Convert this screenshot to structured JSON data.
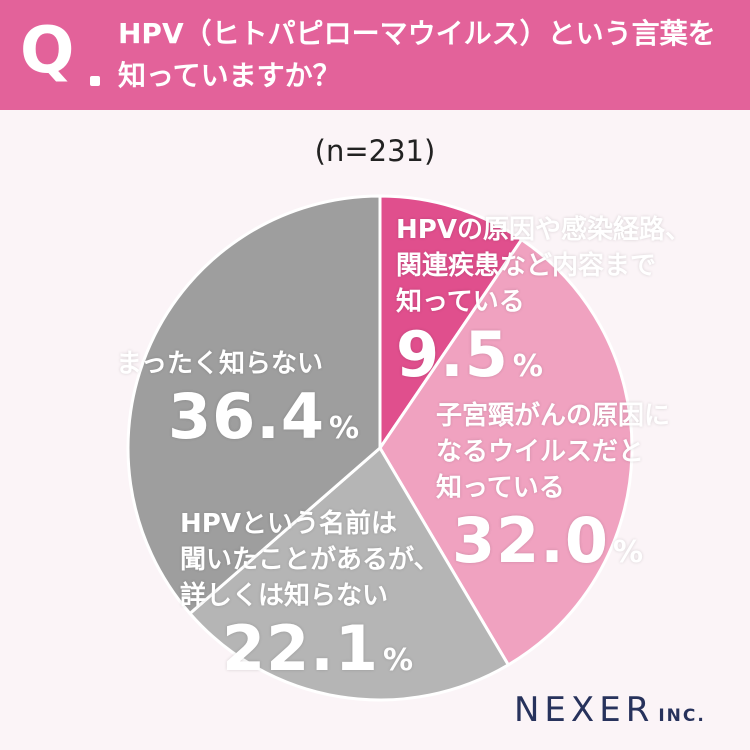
{
  "header": {
    "q_mark": "Q",
    "question_lines": [
      "HPV（ヒトパピローマウイルス）という言葉を",
      "知っていますか？"
    ]
  },
  "sample_size": "(n=231)",
  "colors": {
    "header_bg": "#e3629a",
    "slice_know_details": "#e04f8d",
    "slice_know_virus": "#f0a2c0",
    "slice_heard_only": "#b5b5b5",
    "slice_dont_know": "#9e9e9e",
    "background": "#fbf4f7"
  },
  "chart_data": {
    "type": "pie",
    "start_angle": "12 o'clock, clockwise",
    "slices": [
      {
        "label_lines": [
          "HPVの原因や感染経路、",
          "関連疾患など内容まで",
          "知っている"
        ],
        "value": 9.5,
        "value_text": "9.5",
        "unit": "%",
        "color": "#e04f8d"
      },
      {
        "label_lines": [
          "子宮頸がんの原因に",
          "なるウイルスだと",
          "知っている"
        ],
        "value": 32.0,
        "value_text": "32.0",
        "unit": "%",
        "color": "#f0a2c0"
      },
      {
        "label_lines": [
          "HPVという名前は",
          "聞いたことがあるが、",
          "詳しくは知らない"
        ],
        "value": 22.1,
        "value_text": "22.1",
        "unit": "%",
        "color": "#b5b5b5"
      },
      {
        "label_lines": [
          "まったく知らない"
        ],
        "value": 36.4,
        "value_text": "36.4",
        "unit": "%",
        "color": "#9e9e9e"
      }
    ]
  },
  "logo": {
    "main": "NEXER",
    "suffix": "INC."
  }
}
